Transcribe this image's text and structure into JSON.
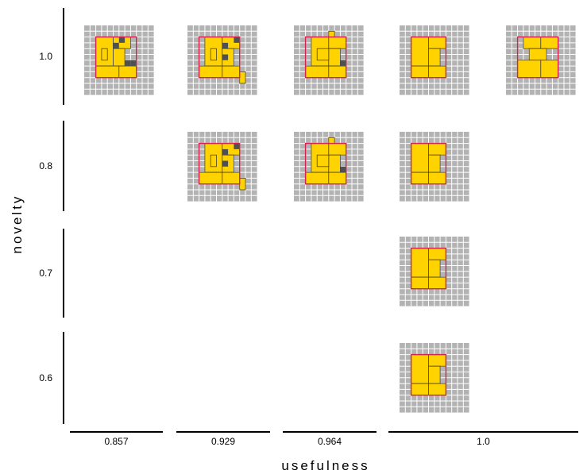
{
  "chart_data": {
    "type": "grid",
    "xlabel": "usefulness",
    "ylabel": "novelty",
    "x_ticks": [
      "0.857",
      "0.929",
      "0.964",
      "1.0"
    ],
    "y_ticks": [
      "1.0",
      "0.8",
      "0.7",
      "0.6"
    ],
    "colors": {
      "grid_background": "#b3b3b3",
      "grid_line": "#ffffff",
      "block_fill": "#ffd300",
      "block_outline": "#d6204e",
      "dark_cell": "#505050"
    },
    "points": [
      {
        "usefulness": 0.857,
        "novelty": 1.0,
        "design": "a"
      },
      {
        "usefulness": 0.929,
        "novelty": 1.0,
        "design": "b"
      },
      {
        "usefulness": 0.964,
        "novelty": 1.0,
        "design": "c"
      },
      {
        "usefulness": 1.0,
        "novelty": 1.0,
        "design": "d"
      },
      {
        "usefulness": 1.0,
        "novelty": 1.0,
        "design": "e"
      },
      {
        "usefulness": 0.929,
        "novelty": 0.8,
        "design": "b"
      },
      {
        "usefulness": 0.964,
        "novelty": 0.8,
        "design": "c"
      },
      {
        "usefulness": 1.0,
        "novelty": 0.8,
        "design": "d"
      },
      {
        "usefulness": 1.0,
        "novelty": 0.7,
        "design": "d"
      },
      {
        "usefulness": 1.0,
        "novelty": 0.6,
        "design": "d"
      }
    ]
  }
}
